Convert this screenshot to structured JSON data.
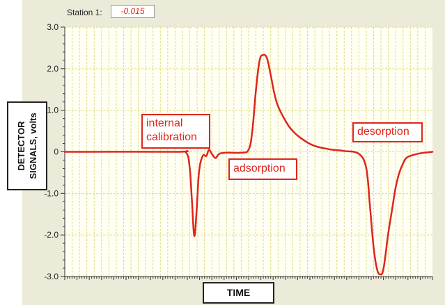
{
  "station": {
    "label": "Station 1:",
    "value": "-0.015"
  },
  "ylabel": "DETECTOR\nSIGNALS, volts",
  "xlabel": "TIME",
  "annotations": {
    "calibration": "internal\ncalibration",
    "adsorption": "adsorption",
    "desorption": "desorption"
  },
  "colors": {
    "trace": "#e0251b",
    "grid": "#e2d983",
    "panel": "#ecebd9",
    "plot_bg": "#fffff3"
  },
  "chart_data": {
    "type": "line",
    "title": "",
    "xlabel": "TIME",
    "ylabel": "DETECTOR SIGNALS, volts",
    "ylim": [
      -3.0,
      3.0
    ],
    "xlim": [
      0,
      100
    ],
    "yticks": [
      "3.0",
      "2.0",
      "1.0",
      "0",
      "-1.0",
      "-2.0",
      "-3.0"
    ],
    "grid": true,
    "series": [
      {
        "name": "",
        "x": [
          0,
          30,
          33,
          34,
          34.6,
          35.2,
          35.8,
          36.5,
          37.5,
          38.5,
          39.2,
          40,
          41,
          42,
          44,
          48,
          50,
          51,
          52,
          53,
          54,
          55,
          56,
          57,
          58,
          60,
          62,
          65,
          68,
          72,
          76,
          80,
          82,
          83,
          84,
          85,
          86,
          86.6,
          87.2,
          88,
          89,
          90,
          91,
          92,
          93,
          95,
          97,
          100
        ],
        "y": [
          0,
          0,
          -0.02,
          -0.4,
          -1.2,
          -2.02,
          -1.5,
          -0.5,
          -0.1,
          -0.1,
          0.05,
          -0.05,
          -0.15,
          -0.05,
          -0.02,
          -0.02,
          0.05,
          0.5,
          1.5,
          2.2,
          2.33,
          2.25,
          1.85,
          1.4,
          1.1,
          0.75,
          0.5,
          0.28,
          0.14,
          0.06,
          0.02,
          -0.05,
          -0.4,
          -1.3,
          -2.3,
          -2.85,
          -2.95,
          -2.85,
          -2.5,
          -1.95,
          -1.4,
          -0.85,
          -0.5,
          -0.28,
          -0.14,
          -0.07,
          -0.03,
          0
        ]
      }
    ]
  }
}
